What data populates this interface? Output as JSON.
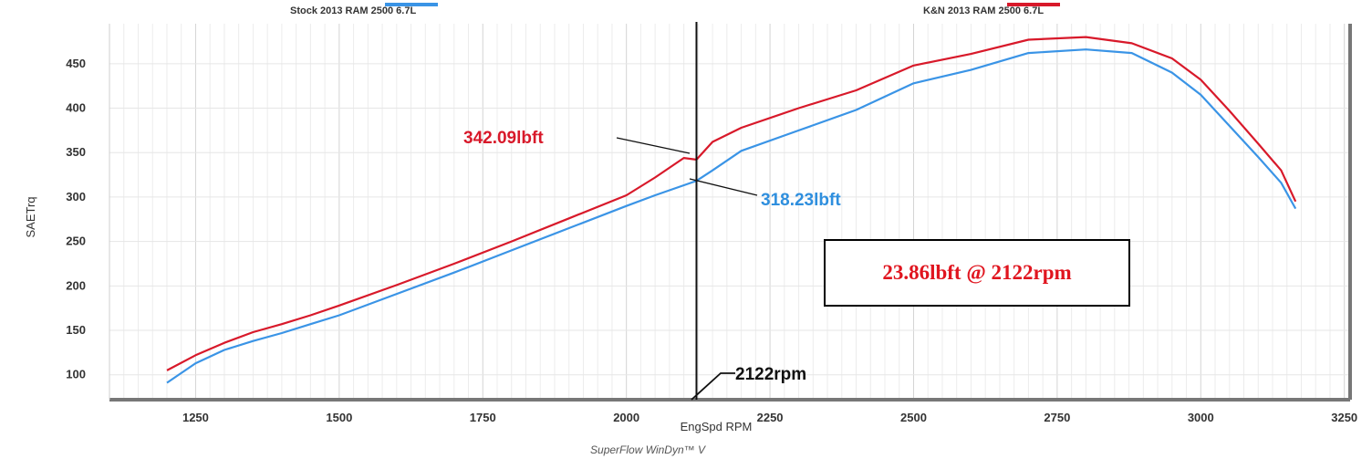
{
  "chart_data": {
    "type": "line",
    "xlabel": "EngSpd RPM",
    "ylabel": "SAETrq",
    "xlim": [
      1100,
      3260
    ],
    "ylim": [
      72,
      495
    ],
    "x_ticks": [
      1250,
      1500,
      1750,
      2000,
      2250,
      2500,
      2750,
      3000,
      3250
    ],
    "y_ticks": [
      100,
      150,
      200,
      250,
      300,
      350,
      400,
      450
    ],
    "grid": true,
    "legend_placement": "top",
    "series": [
      {
        "name": "Stock 2013 RAM 2500 6.7L",
        "color": "#3a94e6",
        "x": [
          1200,
          1250,
          1300,
          1350,
          1400,
          1450,
          1500,
          1600,
          1700,
          1800,
          1900,
          2000,
          2050,
          2122,
          2150,
          2200,
          2300,
          2400,
          2500,
          2600,
          2700,
          2800,
          2880,
          2950,
          3000,
          3050,
          3100,
          3140,
          3165
        ],
        "y": [
          91,
          113,
          128,
          138,
          147,
          157,
          167,
          191,
          215,
          240,
          265,
          290,
          302,
          318.23,
          330,
          352,
          375,
          398,
          428,
          443,
          462,
          466,
          462,
          440,
          415,
          380,
          345,
          316,
          287
        ]
      },
      {
        "name": "K&N 2013 RAM 2500 6.7L",
        "color": "#d8192a",
        "x": [
          1200,
          1250,
          1300,
          1350,
          1400,
          1450,
          1500,
          1600,
          1700,
          1800,
          1900,
          2000,
          2050,
          2100,
          2122,
          2150,
          2200,
          2300,
          2400,
          2500,
          2600,
          2700,
          2800,
          2880,
          2950,
          3000,
          3050,
          3100,
          3140,
          3165
        ],
        "y": [
          105,
          122,
          136,
          148,
          157,
          167,
          178,
          201,
          225,
          250,
          276,
          302,
          322,
          344,
          342.09,
          362,
          378,
          400,
          420,
          448,
          461,
          477,
          480,
          473,
          456,
          432,
          397,
          360,
          330,
          295
        ]
      }
    ],
    "annotations": {
      "marker_x": 2122,
      "marker_label": "2122rpm",
      "kn_value_label": "342.09lbft",
      "stock_value_label": "318.23lbft",
      "summary": "23.86lbft @ 2122rpm"
    },
    "footer": "SuperFlow WinDyn™ V"
  }
}
